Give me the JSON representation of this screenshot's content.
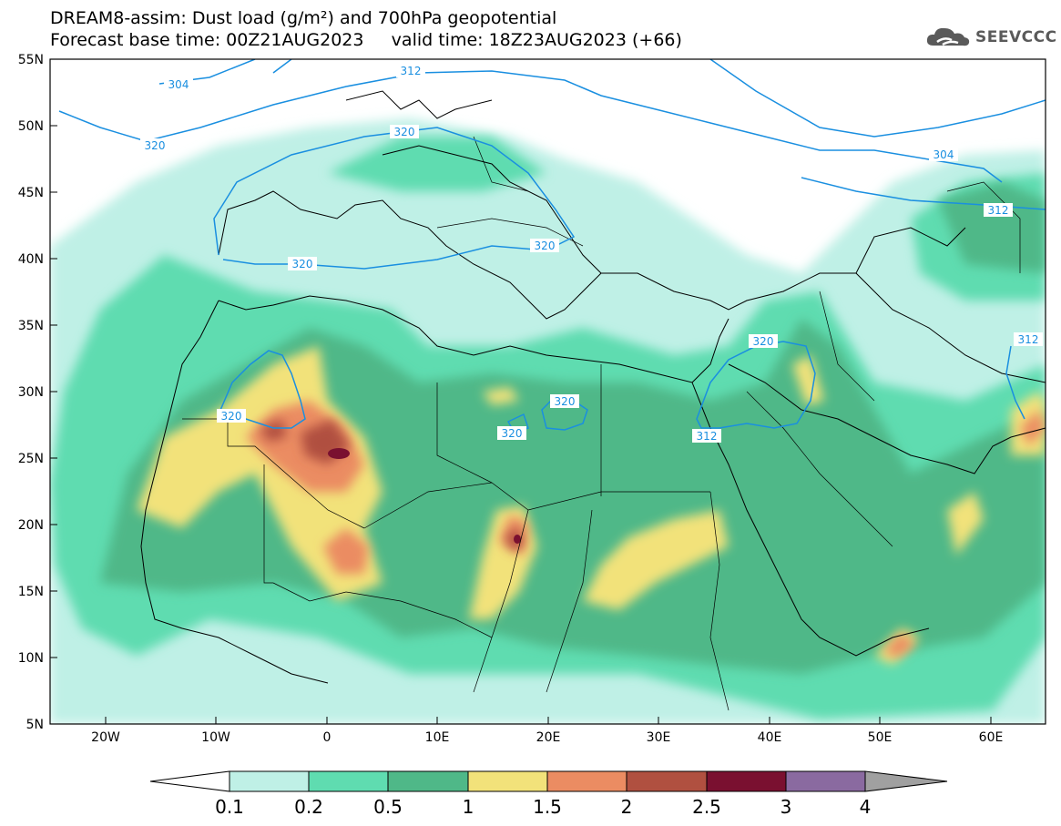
{
  "header": {
    "line1": "DREAM8-assim: Dust load (g/m²) and 700hPa geopotential",
    "line2": "Forecast base time: 00Z21AUG2023     valid time: 18Z23AUG2023 (+66)"
  },
  "logo": {
    "text": "SEEVCCC",
    "icon": "cloud-icon"
  },
  "map": {
    "lon_range": [
      -25,
      65
    ],
    "lat_range": [
      5,
      55
    ],
    "lat_ticks": [
      "55N",
      "50N",
      "45N",
      "40N",
      "35N",
      "30N",
      "25N",
      "20N",
      "15N",
      "10N",
      "5N"
    ],
    "lon_ticks": [
      "20W",
      "10W",
      "0",
      "10E",
      "20E",
      "30E",
      "40E",
      "50E",
      "60E"
    ],
    "contour_labels": [
      "304",
      "312",
      "320",
      "320",
      "320",
      "320",
      "320",
      "320",
      "320",
      "320",
      "312",
      "304",
      "312",
      "312"
    ]
  },
  "colorbar": {
    "labels": [
      "0.1",
      "0.2",
      "0.5",
      "1",
      "1.5",
      "2",
      "2.5",
      "3",
      "4"
    ],
    "colors": {
      "c01": "#bff0e6",
      "c02": "#5fdcb0",
      "c05": "#4fb888",
      "c1": "#f2e27a",
      "c15": "#eb8c62",
      "c2": "#b05040",
      "c25": "#7a1030",
      "c3": "#8a6aa0",
      "c4": "#a0a0a0"
    }
  },
  "style": {
    "contour_color": "#1a8fe0",
    "border_color": "#000000"
  }
}
